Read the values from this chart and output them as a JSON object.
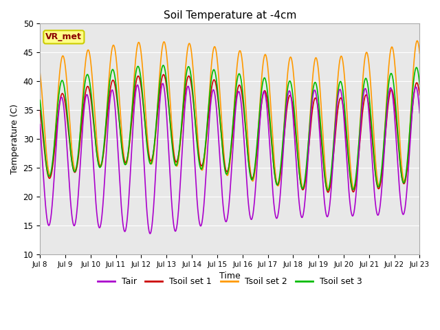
{
  "title": "Soil Temperature at -4cm",
  "xlabel": "Time",
  "ylabel": "Temperature (C)",
  "ylim": [
    10,
    50
  ],
  "x_tick_labels": [
    "Jul 8",
    "Jul 9",
    "Jul 10",
    "Jul 11",
    "Jul 12",
    "Jul 13",
    "Jul 14",
    "Jul 15",
    "Jul 16",
    "Jul 17",
    "Jul 18",
    "Jul 19",
    "Jul 20",
    "Jul 21",
    "Jul 22",
    "Jul 23"
  ],
  "annotation_text": "VR_met",
  "annotation_color": "#8B0000",
  "annotation_bg": "#FFFF88",
  "annotation_edge": "#CCCC00",
  "line_colors": {
    "Tair": "#AA00CC",
    "Tsoil_set1": "#CC0000",
    "Tsoil_set2": "#FF9900",
    "Tsoil_set3": "#00BB00"
  },
  "legend_labels": [
    "Tair",
    "Tsoil set 1",
    "Tsoil set 2",
    "Tsoil set 3"
  ],
  "bg_color": "#E8E8E8",
  "fig_bg_color": "#FFFFFF",
  "grid_color": "#FFFFFF",
  "n_days": 15,
  "samples_per_day": 96
}
